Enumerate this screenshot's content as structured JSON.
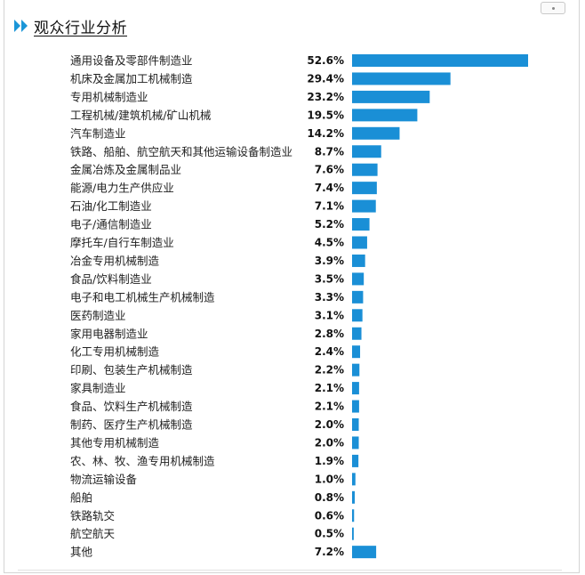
{
  "header": {
    "title": "观众行业分析",
    "icon": "double-chevron-icon",
    "icon_color": "#1a96d8"
  },
  "colors": {
    "bar": "#1a8fd6",
    "label": "#222222",
    "value": "#111111"
  },
  "chart_data": {
    "type": "bar",
    "orientation": "horizontal",
    "title": "观众行业分析",
    "xlabel": "",
    "ylabel": "",
    "unit": "%",
    "grid": false,
    "legend": "none",
    "xlim": [
      0,
      52.6
    ],
    "categories": [
      "通用设备及零部件制造业",
      "机床及金属加工机械制造",
      "专用机械制造业",
      "工程机械/建筑机械/矿山机械",
      "汽车制造业",
      "铁路、船舶、航空航天和其他运输设备制造业",
      "金属冶炼及金属制品业",
      "能源/电力生产供应业",
      "石油/化工制造业",
      "电子/通信制造业",
      "摩托车/自行车制造业",
      "冶金专用机械制造",
      "食品/饮料制造业",
      "电子和电工机械生产机械制造",
      "医药制造业",
      "家用电器制造业",
      "化工专用机械制造",
      "印刷、包装生产机械制造",
      "家具制造业",
      "食品、饮料生产机械制造",
      "制药、医疗生产机械制造",
      "其他专用机械制造",
      "农、林、牧、渔专用机械制造",
      "物流运输设备",
      "船舶",
      "铁路轨交",
      "航空航天",
      "其他"
    ],
    "values": [
      52.6,
      29.4,
      23.2,
      19.5,
      14.2,
      8.7,
      7.6,
      7.4,
      7.1,
      5.2,
      4.5,
      3.9,
      3.5,
      3.3,
      3.1,
      2.8,
      2.4,
      2.2,
      2.1,
      2.1,
      2.0,
      2.0,
      1.9,
      1.0,
      0.8,
      0.6,
      0.5,
      7.2
    ],
    "value_labels": [
      "52.6%",
      "29.4%",
      "23.2%",
      "19.5%",
      "14.2%",
      "8.7%",
      "7.6%",
      "7.4%",
      "7.1%",
      "5.2%",
      "4.5%",
      "3.9%",
      "3.5%",
      "3.3%",
      "3.1%",
      "2.8%",
      "2.4%",
      "2.2%",
      "2.1%",
      "2.1%",
      "2.0%",
      "2.0%",
      "1.9%",
      "1.0%",
      "0.8%",
      "0.6%",
      "0.5%",
      "7.2%"
    ]
  }
}
